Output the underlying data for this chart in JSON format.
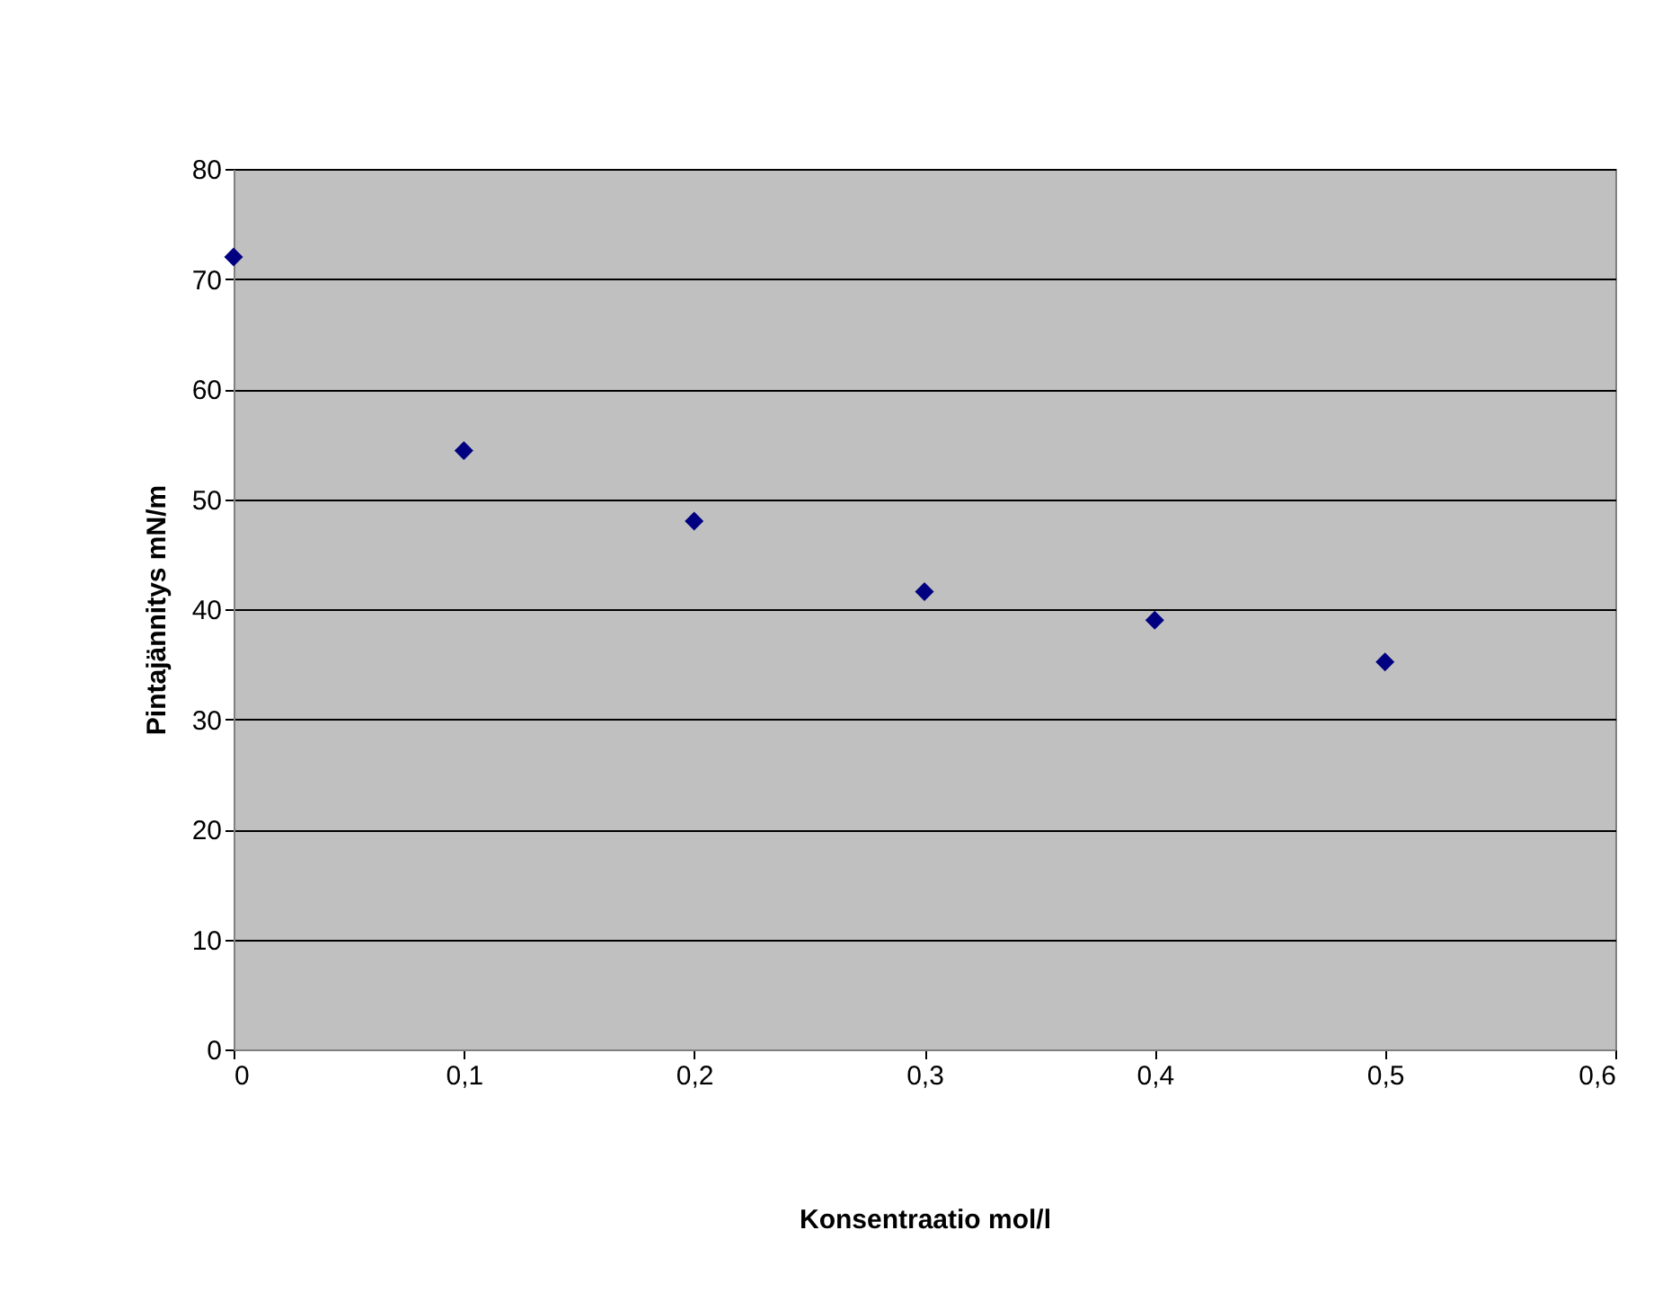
{
  "chart_data": {
    "type": "scatter",
    "xlabel": "Konsentraatio mol/l",
    "ylabel": "Pintajännitys mN/m",
    "x": [
      0,
      0.1,
      0.2,
      0.3,
      0.4,
      0.5
    ],
    "series": [
      {
        "color": "#000080",
        "values": [
          72.0,
          54.4,
          48.0,
          41.6,
          39.0,
          35.2
        ]
      }
    ],
    "xlim": [
      0,
      0.6
    ],
    "xticks": [
      0,
      {
        "value": 0.1,
        "label": "0,1"
      },
      {
        "value": 0.2,
        "label": "0,2"
      },
      {
        "value": 0.3,
        "label": "0,3"
      },
      {
        "value": 0.4,
        "label": "0,4"
      },
      {
        "value": 0.5,
        "label": "0,5"
      },
      {
        "value": 0.6,
        "label": "0,6"
      }
    ],
    "ylim": [
      0,
      80
    ],
    "yticks": [
      0,
      10,
      20,
      30,
      40,
      50,
      60,
      70,
      80
    ],
    "grid": "y",
    "marker": "diamond"
  }
}
